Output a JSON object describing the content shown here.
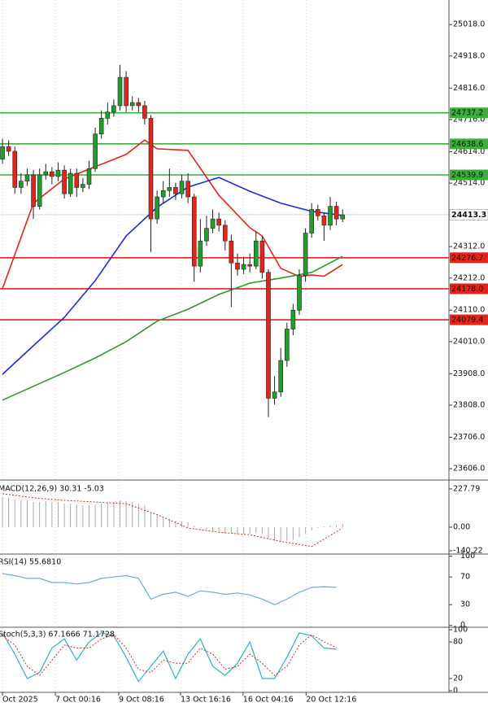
{
  "chart_data": {
    "type": "candlestick",
    "xlim": [
      -0.4,
      72.2
    ],
    "xticks": [
      {
        "value": 0,
        "label": "Oct 2025"
      },
      {
        "value": 8.55,
        "label": "7 Oct 00:16"
      },
      {
        "value": 18.8,
        "label": "9 Oct 08:16"
      },
      {
        "value": 28.8,
        "label": "13 Oct 16:16"
      },
      {
        "value": 38.9,
        "label": "16 Oct 04:16"
      },
      {
        "value": 49.1,
        "label": "20 Oct 12:16"
      }
    ],
    "ylim": [
      23570,
      25096
    ],
    "yticks": [
      {
        "value": 25018,
        "label": "25018.0"
      },
      {
        "value": 24918,
        "label": "24918.0"
      },
      {
        "value": 24816,
        "label": "24816.0"
      },
      {
        "value": 24716,
        "label": "24716.0"
      },
      {
        "value": 24614,
        "label": "24614.0"
      },
      {
        "value": 24514,
        "label": "24514.0"
      },
      {
        "value": 24312,
        "label": "24312.0"
      },
      {
        "value": 24212,
        "label": "24212.0"
      },
      {
        "value": 24110,
        "label": "24110.0"
      },
      {
        "value": 24010,
        "label": "24010.0"
      },
      {
        "value": 23908,
        "label": "23908.0"
      },
      {
        "value": 23808,
        "label": "23808.0"
      },
      {
        "value": 23706,
        "label": "23706.0"
      },
      {
        "value": 23606,
        "label": "23606.0"
      }
    ],
    "up_color": "#1f9e2c",
    "down_color": "#e3241b",
    "open": [
      24590,
      24630,
      24615,
      24500,
      24520,
      24540,
      24440,
      24540,
      24550,
      24535,
      24555,
      24480,
      24545,
      24500,
      24510,
      24560,
      24670,
      24720,
      24740,
      24760,
      24850,
      24760,
      24770,
      24760,
      24720,
      24400,
      24470,
      24490,
      24500,
      24480,
      24520,
      24470,
      24250,
      24330,
      24370,
      24400,
      24380,
      24330,
      24260,
      24240,
      24255,
      24250,
      24330,
      24230,
      23830,
      23850,
      23950,
      24050,
      24110,
      24220,
      24355,
      24430,
      24410,
      24380,
      24440,
      24400
    ],
    "high": [
      24655,
      24650,
      24630,
      24545,
      24560,
      24555,
      24560,
      24575,
      24565,
      24580,
      24570,
      24560,
      24560,
      24530,
      24585,
      24690,
      24745,
      24770,
      24780,
      24890,
      24870,
      24790,
      24785,
      24775,
      24730,
      24490,
      24520,
      24560,
      24515,
      24540,
      24545,
      24480,
      24400,
      24410,
      24430,
      24420,
      24395,
      24350,
      24290,
      24280,
      24290,
      24360,
      24345,
      24240,
      23900,
      23990,
      24070,
      24130,
      24240,
      24370,
      24450,
      24445,
      24420,
      24470,
      24455,
      24430
    ],
    "low": [
      24575,
      24600,
      24480,
      24480,
      24505,
      24400,
      24430,
      24525,
      24510,
      24520,
      24465,
      24470,
      24470,
      24485,
      24495,
      24550,
      24655,
      24700,
      24725,
      24745,
      24740,
      24745,
      24740,
      24700,
      24295,
      24385,
      24450,
      24470,
      24460,
      24465,
      24450,
      24200,
      24230,
      24315,
      24355,
      24360,
      24300,
      24120,
      24220,
      24225,
      24230,
      24240,
      24210,
      23770,
      23810,
      23835,
      23930,
      24030,
      24095,
      24200,
      24340,
      24395,
      24330,
      24365,
      24380,
      24390
    ],
    "close": [
      24630,
      24615,
      24500,
      24520,
      24540,
      24440,
      24540,
      24550,
      24535,
      24555,
      24480,
      24545,
      24500,
      24510,
      24560,
      24670,
      24720,
      24740,
      24760,
      24850,
      24760,
      24770,
      24760,
      24720,
      24400,
      24470,
      24490,
      24500,
      24480,
      24520,
      24470,
      24250,
      24330,
      24370,
      24400,
      24380,
      24330,
      24260,
      24240,
      24255,
      24250,
      24330,
      24230,
      23830,
      23850,
      23950,
      24050,
      24110,
      24220,
      24355,
      24430,
      24410,
      24380,
      24440,
      24400,
      24413
    ],
    "moving_averages": [
      {
        "color": "#e3241b",
        "x": [
          0,
          5,
          10,
          15,
          20,
          23,
          25,
          30,
          35,
          40,
          42,
          45,
          48,
          50,
          52,
          55
        ],
        "values": [
          24178,
          24450,
          24527,
          24566,
          24605,
          24651,
          24623,
          24618,
          24475,
          24372,
          24346,
          24243,
          24217,
          24222,
          24218,
          24255
        ]
      },
      {
        "color": "#1a2fd6",
        "x": [
          0,
          5,
          10,
          15,
          20,
          25,
          30,
          35,
          40,
          45,
          50,
          55
        ],
        "values": [
          23906,
          23997,
          24087,
          24204,
          24346,
          24437,
          24501,
          24532,
          24488,
          24450,
          24424,
          24411
        ]
      },
      {
        "color": "#2c9a2c",
        "x": [
          0,
          5,
          10,
          15,
          20,
          25,
          30,
          35,
          40,
          45,
          50,
          55
        ],
        "values": [
          23824,
          23868,
          23912,
          23958,
          24010,
          24075,
          24113,
          24160,
          24196,
          24212,
          24230,
          24281
        ]
      }
    ],
    "levels": [
      {
        "value": 24737.2,
        "color": "#3cae3c"
      },
      {
        "value": 24638.6,
        "color": "#3cae3c"
      },
      {
        "value": 24539.9,
        "color": "#3cae3c"
      },
      {
        "value": 24276.7,
        "color": "#e3241b"
      },
      {
        "value": 24178,
        "label": "24178.0",
        "color": "#e3241b"
      },
      {
        "value": 24079.4,
        "color": "#e3241b"
      }
    ],
    "last_price": 24413.3,
    "macd": {
      "title": "MACD(12,26,9) 30.31 -5.03",
      "ylim": [
        -155,
        276
      ],
      "yticks": [
        227.79,
        {
          "value": 0,
          "label": "0.00"
        },
        -140.22
      ],
      "histogram_color": "#a8a8a8",
      "histogram": [
        180,
        175,
        165,
        160,
        160,
        150,
        150,
        155,
        150,
        150,
        140,
        140,
        135,
        130,
        130,
        135,
        140,
        145,
        150,
        160,
        155,
        150,
        140,
        130,
        90,
        70,
        60,
        50,
        40,
        35,
        30,
        10,
        -5,
        -15,
        -20,
        -25,
        -30,
        -35,
        -40,
        -40,
        -40,
        -35,
        -40,
        -70,
        -80,
        -85,
        -80,
        -75,
        -60,
        -40,
        -20,
        -5,
        5,
        10,
        15,
        20
      ],
      "signal_color": "#e3241b",
      "signal_x": [
        0,
        5,
        10,
        15,
        20,
        25,
        30,
        35,
        40,
        45,
        50,
        55
      ],
      "signal": [
        200,
        175,
        160,
        150,
        140,
        75,
        -5,
        -30,
        -45,
        -85,
        -115,
        -5
      ]
    },
    "rsi": {
      "title": "RSI(14) 55.6810",
      "ylim": [
        -1.5,
        102
      ],
      "yticks": [
        100,
        70,
        30,
        0
      ],
      "color": "#6aa9ee",
      "x": [
        0,
        2,
        4,
        6,
        8,
        10,
        12,
        14,
        16,
        18,
        20,
        22,
        24,
        26,
        28,
        30,
        32,
        34,
        36,
        38,
        40,
        42,
        44,
        46,
        48,
        50,
        52,
        54
      ],
      "values": [
        75,
        72,
        68,
        68,
        62,
        62,
        60,
        62,
        68,
        70,
        72,
        68,
        38,
        45,
        48,
        42,
        50,
        48,
        45,
        47,
        44,
        38,
        30,
        38,
        48,
        55,
        56,
        55
      ]
    },
    "stoch": {
      "title": "Stoch(5,3,3) 67.1666 71.1728",
      "ylim": [
        -2.7,
        102.7
      ],
      "yticks": [
        100,
        80,
        20,
        0
      ],
      "x": [
        0,
        2,
        4,
        6,
        8,
        10,
        12,
        14,
        16,
        18,
        20,
        22,
        24,
        26,
        28,
        30,
        32,
        34,
        36,
        38,
        40,
        42,
        44,
        46,
        48,
        50,
        52,
        54
      ],
      "k_color": "#2ab3c8",
      "k": [
        95,
        60,
        20,
        30,
        70,
        85,
        50,
        80,
        95,
        90,
        55,
        15,
        40,
        65,
        20,
        60,
        85,
        40,
        25,
        45,
        80,
        20,
        20,
        55,
        95,
        90,
        70,
        68
      ],
      "d_color": "#e3241b",
      "d": [
        90,
        75,
        40,
        25,
        50,
        75,
        70,
        70,
        85,
        92,
        70,
        35,
        30,
        50,
        45,
        45,
        70,
        60,
        35,
        40,
        60,
        45,
        25,
        40,
        75,
        92,
        80,
        71
      ]
    }
  }
}
